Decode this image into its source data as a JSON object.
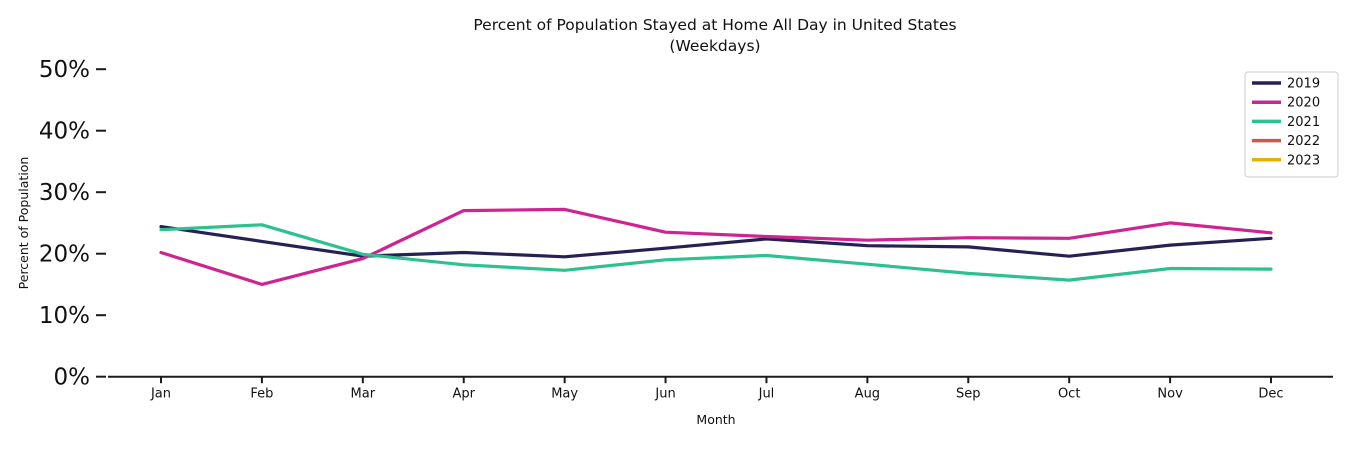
{
  "chart_data": {
    "type": "line",
    "title": "Percent of Population Stayed at Home All Day in United States",
    "subtitle": "(Weekdays)",
    "xlabel": "Month",
    "ylabel": "Percent of Population",
    "categories": [
      "Jan",
      "Feb",
      "Mar",
      "Apr",
      "May",
      "Jun",
      "Jul",
      "Aug",
      "Sep",
      "Oct",
      "Nov",
      "Dec"
    ],
    "y_tick_labels": [
      "0%",
      "10%",
      "20%",
      "30%",
      "40%",
      "50%"
    ],
    "y_tick_values": [
      0,
      10,
      20,
      30,
      40,
      50
    ],
    "ylim": [
      0,
      50
    ],
    "grid": false,
    "legend_position": "upper right",
    "axis_color": "#1a1a1a",
    "series": [
      {
        "name": "2019",
        "color": "#262155",
        "values": [
          24.4,
          22.0,
          19.6,
          20.2,
          19.5,
          20.9,
          22.4,
          21.3,
          21.1,
          19.6,
          21.4,
          22.5
        ]
      },
      {
        "name": "2020",
        "color": "#ce2390",
        "values": [
          20.2,
          15.0,
          19.2,
          27.0,
          27.2,
          23.5,
          22.8,
          22.2,
          22.6,
          22.5,
          25.0,
          23.4
        ]
      },
      {
        "name": "2021",
        "color": "#2dc18f",
        "values": [
          23.9,
          24.7,
          19.9,
          18.2,
          17.3,
          19.0,
          19.7,
          18.3,
          16.8,
          15.7,
          17.6,
          17.5
        ]
      },
      {
        "name": "2022",
        "color": "#cb584c",
        "values": []
      },
      {
        "name": "2023",
        "color": "#dfb30e",
        "values": []
      }
    ]
  }
}
